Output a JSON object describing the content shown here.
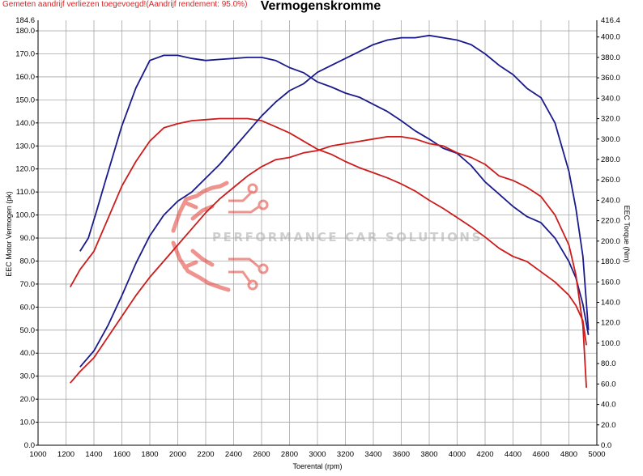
{
  "header": {
    "note": "Gemeten aandrijf verliezen toegevoegd!(Aandrijf rendement: 95.0%)",
    "title": "Vermogenskromme"
  },
  "watermark": {
    "text": "PERFORMANCE CAR SOLUTIONS"
  },
  "chart_data": {
    "type": "line",
    "title": "Vermogenskromme",
    "xlabel": "Toerental (rpm)",
    "ylabel_left": "EEC Motor Vermogen (pk)",
    "ylabel_right": "EEC Torque (Nm)",
    "xlim": [
      1000,
      5000
    ],
    "ylim_left": [
      0,
      184.6
    ],
    "ylim_right": [
      0,
      416.4
    ],
    "x_ticks": [
      "1000",
      "1200",
      "1400",
      "1600",
      "1800",
      "2000",
      "2200",
      "2400",
      "2600",
      "2800",
      "3000",
      "3200",
      "3400",
      "3600",
      "3800",
      "4000",
      "4200",
      "4400",
      "4600",
      "4800",
      "5000"
    ],
    "y_left_ticks": [
      "0.0",
      "10.0",
      "20.0",
      "30.0",
      "40.0",
      "50.0",
      "60.0",
      "70.0",
      "80.0",
      "90.0",
      "100.0",
      "110.0",
      "120.0",
      "130.0",
      "140.0",
      "150.0",
      "160.0",
      "170.0",
      "180.0"
    ],
    "y_left_top": "184.6",
    "y_right_ticks": [
      "0.0",
      "20.0",
      "40.0",
      "60.0",
      "80.0",
      "100.0",
      "120.0",
      "140.0",
      "160.0",
      "180.0",
      "200.0",
      "220.0",
      "240.0",
      "260.0",
      "280.0",
      "300.0",
      "320.0",
      "340.0",
      "360.0",
      "380.0",
      "400.0"
    ],
    "y_right_top": "416.4",
    "grid": true,
    "series": [
      {
        "axis": "right",
        "color": "#1a1a8c",
        "x": [
          1300,
          1360,
          1420,
          1480,
          1600,
          1700,
          1800,
          1900,
          2000,
          2100,
          2200,
          2300,
          2400,
          2500,
          2600,
          2700,
          2800,
          2900,
          3000,
          3100,
          3200,
          3300,
          3400,
          3500,
          3600,
          3700,
          3800,
          3900,
          4000,
          4100,
          4200,
          4300,
          4400,
          4500,
          4600,
          4700,
          4800,
          4850,
          4900,
          4940
        ],
        "y": [
          190,
          203,
          230,
          258,
          313,
          350,
          377,
          382,
          382,
          379,
          377,
          378,
          379,
          380,
          380,
          377,
          370,
          365,
          356,
          351,
          345,
          341,
          334,
          327,
          318,
          308,
          300,
          291,
          286,
          274,
          258,
          246,
          234,
          224,
          218,
          203,
          180,
          164,
          138,
          108
        ]
      },
      {
        "axis": "right",
        "color": "#cc1c1c",
        "x": [
          1230,
          1300,
          1400,
          1500,
          1600,
          1700,
          1800,
          1900,
          2000,
          2100,
          2200,
          2300,
          2400,
          2500,
          2600,
          2700,
          2800,
          2900,
          3000,
          3100,
          3200,
          3300,
          3400,
          3500,
          3600,
          3700,
          3800,
          3900,
          4000,
          4100,
          4200,
          4300,
          4400,
          4500,
          4600,
          4700,
          4800,
          4850,
          4900,
          4925
        ],
        "y": [
          155,
          172,
          190,
          222,
          254,
          278,
          298,
          311,
          315,
          318,
          319,
          320,
          320,
          320,
          318,
          312,
          306,
          298,
          290,
          285,
          278,
          272,
          267,
          262,
          256,
          249,
          240,
          232,
          223,
          214,
          204,
          193,
          185,
          180,
          170,
          160,
          147,
          137,
          122,
          98
        ]
      },
      {
        "axis": "left",
        "color": "#1a1a8c",
        "x": [
          1300,
          1400,
          1500,
          1600,
          1700,
          1800,
          1900,
          2000,
          2100,
          2200,
          2300,
          2400,
          2500,
          2600,
          2700,
          2800,
          2900,
          3000,
          3100,
          3200,
          3300,
          3400,
          3500,
          3600,
          3700,
          3800,
          3900,
          4000,
          4100,
          4200,
          4300,
          4400,
          4500,
          4600,
          4700,
          4800,
          4850,
          4900,
          4940
        ],
        "y": [
          34,
          41,
          52,
          65,
          79,
          91,
          100,
          106,
          110,
          116,
          122,
          129,
          136,
          143,
          149,
          154,
          157,
          162,
          165,
          168,
          171,
          174,
          176,
          177,
          177,
          178,
          177,
          176,
          174,
          170,
          165,
          161,
          155,
          151,
          140,
          119,
          103,
          82,
          50
        ]
      },
      {
        "axis": "left",
        "color": "#cc1c1c",
        "x": [
          1230,
          1300,
          1400,
          1500,
          1600,
          1700,
          1800,
          1900,
          2000,
          2100,
          2200,
          2300,
          2400,
          2500,
          2600,
          2700,
          2800,
          2900,
          3000,
          3100,
          3200,
          3300,
          3400,
          3500,
          3600,
          3700,
          3800,
          3900,
          4000,
          4100,
          4200,
          4300,
          4400,
          4500,
          4600,
          4700,
          4800,
          4850,
          4900,
          4925
        ],
        "y": [
          27,
          32,
          38,
          47,
          56,
          65,
          73,
          80,
          87,
          94,
          101,
          107,
          112,
          117,
          121,
          124,
          125,
          127,
          128,
          130,
          131,
          132,
          133,
          134,
          134,
          133,
          131,
          130,
          127,
          125,
          122,
          117,
          115,
          112,
          108,
          100,
          87,
          74,
          52,
          25
        ]
      }
    ]
  }
}
